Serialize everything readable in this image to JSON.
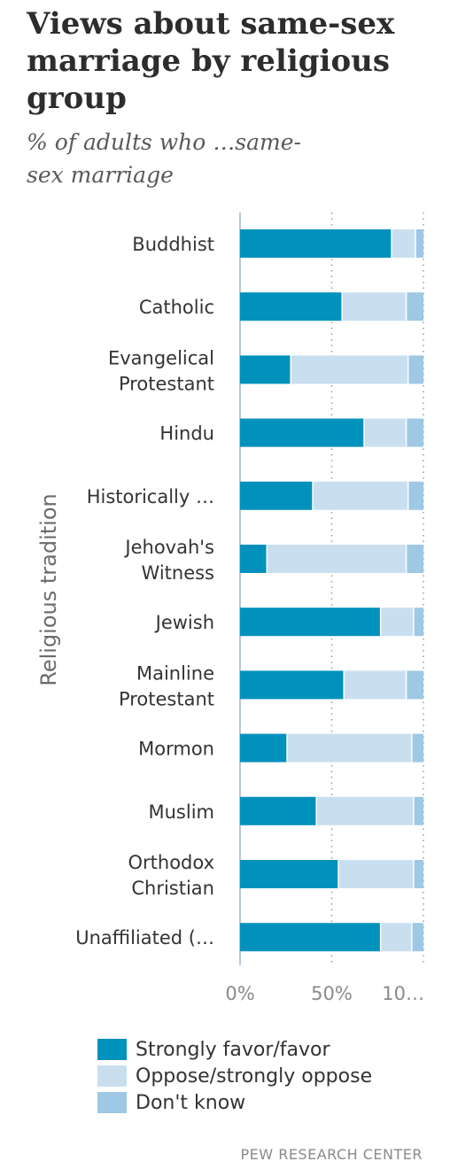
{
  "colors": {
    "favor": "#0091bd",
    "oppose": "#c9dff0",
    "dont_know": "#9ec8e4",
    "axis": "#9fb6c9",
    "grid": "#999999"
  },
  "chart_data": {
    "type": "bar",
    "orientation": "horizontal",
    "stacked": true,
    "title": "Views about same-sex marriage by religious group",
    "subtitle": "% of adults who …same-sex marriage",
    "ylabel": "Religious tradition",
    "xlabel": "",
    "xlim": [
      0,
      100
    ],
    "x_ticks": [
      "0%",
      "50%",
      "10…"
    ],
    "grid": true,
    "legend_position": "bottom-left",
    "categories": [
      {
        "line1": "Buddhist",
        "line2": ""
      },
      {
        "line1": "Catholic",
        "line2": ""
      },
      {
        "line1": "Evangelical",
        "line2": "Protestant"
      },
      {
        "line1": "Hindu",
        "line2": ""
      },
      {
        "line1": "Historically …",
        "line2": ""
      },
      {
        "line1": "Jehovah's",
        "line2": "Witness"
      },
      {
        "line1": "Jewish",
        "line2": ""
      },
      {
        "line1": "Mainline",
        "line2": "Protestant"
      },
      {
        "line1": "Mormon",
        "line2": ""
      },
      {
        "line1": "Muslim",
        "line2": ""
      },
      {
        "line1": "Orthodox",
        "line2": "Christian"
      },
      {
        "line1": "Unaffiliated (…",
        "line2": ""
      }
    ],
    "series": [
      {
        "name": "Strongly favor/favor",
        "values": [
          83,
          56,
          28,
          68,
          40,
          15,
          77,
          57,
          26,
          42,
          54,
          77
        ]
      },
      {
        "name": "Oppose/strongly oppose",
        "values": [
          13,
          35,
          64,
          23,
          52,
          76,
          18,
          34,
          68,
          53,
          41,
          17
        ]
      },
      {
        "name": "Don't know",
        "values": [
          4,
          9,
          8,
          9,
          8,
          9,
          5,
          9,
          6,
          5,
          5,
          6
        ]
      }
    ]
  },
  "source": "PEW RESEARCH CENTER"
}
